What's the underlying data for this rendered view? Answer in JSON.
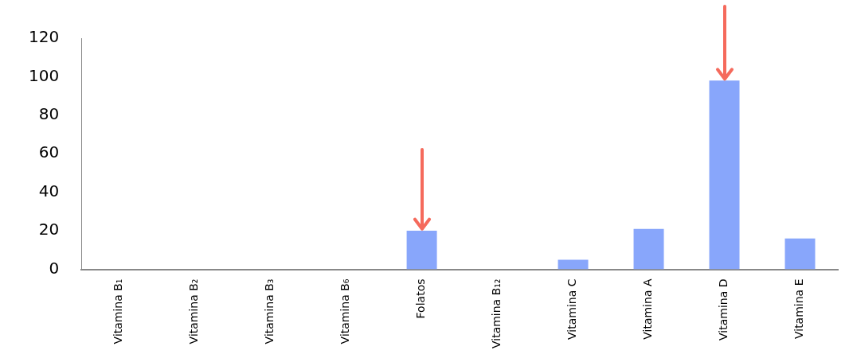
{
  "chart_data": {
    "type": "bar",
    "categories": [
      "Vitamina B₁",
      "Vitamina B₂",
      "Vitamina B₃",
      "Vitamina B₆",
      "Folatos",
      "Vitamina B₁₂",
      "Vitamina C",
      "Vitamina A",
      "Vitamina D",
      "Vitamina E"
    ],
    "values": [
      null,
      null,
      null,
      null,
      20,
      null,
      5,
      21,
      98,
      16
    ],
    "color": "#88a6fb",
    "ylim": [
      0,
      120
    ],
    "yticks": [
      0,
      20,
      40,
      60,
      80,
      100,
      120
    ],
    "grid": false,
    "legend": false
  }
}
